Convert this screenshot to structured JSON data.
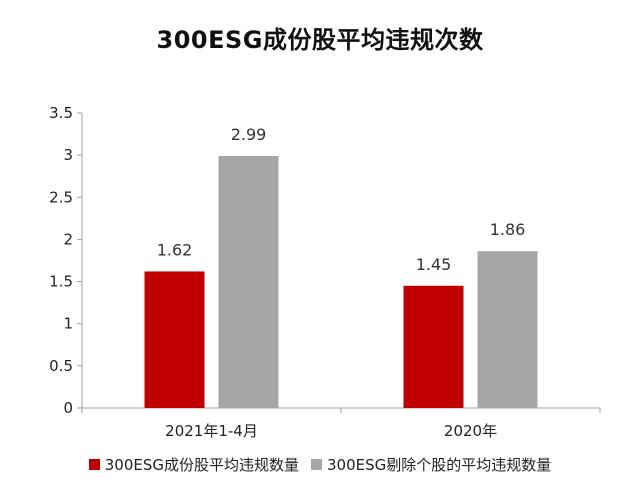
{
  "chart_data": {
    "type": "bar",
    "title": "300ESG成份股平均违规次数",
    "categories": [
      "2021年1-4月",
      "2020年"
    ],
    "series": [
      {
        "name": "300ESG成份股平均违规数量",
        "values": [
          1.62,
          1.45
        ],
        "color": "#c00000"
      },
      {
        "name": "300ESG剔除个股的平均违规数量",
        "values": [
          2.99,
          1.86
        ],
        "color": "#a6a6a6"
      }
    ],
    "ylim": [
      0,
      3.5
    ],
    "yticks": [
      "0",
      "0.5",
      "1",
      "1.5",
      "2",
      "2.5",
      "3",
      "3.5"
    ],
    "data_labels": [
      [
        "1.62",
        "1.45"
      ],
      [
        "2.99",
        "1.86"
      ]
    ],
    "grid": false,
    "legend": "bottom",
    "xlabel": "",
    "ylabel": ""
  }
}
